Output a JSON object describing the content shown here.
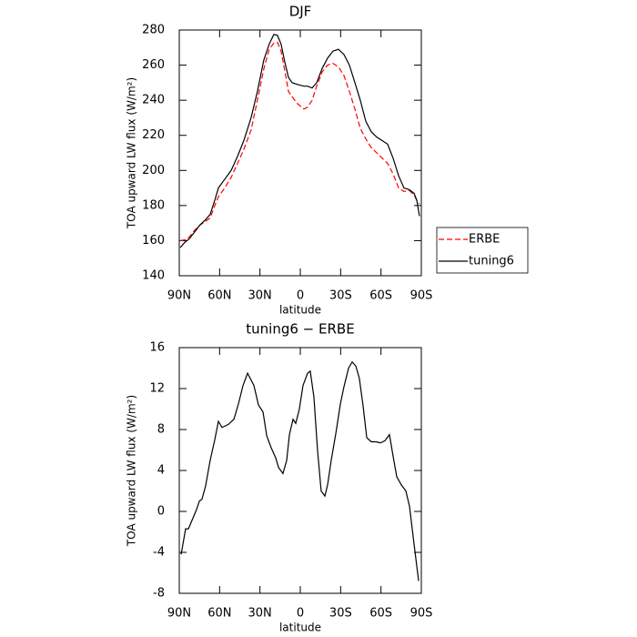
{
  "chart_data": [
    {
      "type": "line",
      "title": "DJF",
      "x_label": "latitude",
      "y_label": "TOA upward LW flux (W/m²)",
      "x": [
        89.3,
        85.9,
        82.6,
        78.5,
        74.5,
        70.4,
        67.0,
        63.6,
        60.9,
        56.2,
        51.4,
        46.7,
        42.0,
        36.6,
        31.9,
        27.1,
        23.1,
        19.7,
        17.0,
        14.3,
        11.6,
        8.8,
        6.1,
        2.1,
        -2.7,
        -5.4,
        -8.8,
        -12.2,
        -16.2,
        -20.3,
        -24.3,
        -28.4,
        -32.5,
        -36.5,
        -40.6,
        -44.6,
        -48.7,
        -52.8,
        -56.8,
        -60.9,
        -64.9,
        -69.0,
        -73.1,
        -77.1,
        -81.2,
        -84.6,
        -86.6,
        -88.6
      ],
      "series": [
        {
          "name": "ERBE",
          "color": "#ff0000",
          "dashed": true,
          "values": [
            160,
            160.5,
            162,
            166,
            169,
            171,
            173,
            180,
            185,
            190,
            196,
            204,
            212,
            223,
            240,
            258,
            269,
            272.5,
            273,
            268,
            257,
            245,
            242,
            238,
            235,
            236,
            240,
            248,
            256,
            260,
            261,
            259,
            254,
            245,
            235,
            224,
            218,
            213,
            210,
            207,
            204,
            198,
            190,
            188,
            188.5,
            186,
            183,
            181
          ]
        },
        {
          "name": "tuning6",
          "color": "#000000",
          "dashed": false,
          "values": [
            156,
            159,
            161,
            165,
            169,
            172,
            175,
            183,
            190,
            195,
            200,
            208,
            217,
            230,
            245,
            263,
            272,
            277.5,
            277,
            272,
            262,
            253,
            250,
            249,
            248,
            248,
            247,
            250,
            258,
            264,
            268,
            269,
            266,
            260,
            250,
            240,
            228,
            222,
            219,
            217,
            215,
            207,
            197,
            190,
            189,
            187,
            183,
            174
          ]
        }
      ],
      "xlim": [
        90,
        -90
      ],
      "xticks": [
        {
          "value": 90,
          "label": "90N"
        },
        {
          "value": 60,
          "label": "60N"
        },
        {
          "value": 30,
          "label": "30N"
        },
        0,
        {
          "value": -30,
          "label": "30S"
        },
        {
          "value": -60,
          "label": "60S"
        },
        {
          "value": -90,
          "label": "90S"
        }
      ],
      "ylim": [
        140,
        280
      ],
      "yticks": [
        140,
        160,
        180,
        200,
        220,
        240,
        260,
        280
      ],
      "legend": "right"
    },
    {
      "type": "line",
      "title": "tuning6 − ERBE",
      "x_label": "latitude",
      "y_label": "TOA upward LW flux (W/m²)",
      "x": [
        88.6,
        85.3,
        83.2,
        77.1,
        75.1,
        73.1,
        70.4,
        67.0,
        63.6,
        60.9,
        58.2,
        53.5,
        49.4,
        46.0,
        42.6,
        39.2,
        34.5,
        31.1,
        27.7,
        25.0,
        21.6,
        18.2,
        16.2,
        12.9,
        10.1,
        8.1,
        5.4,
        3.4,
        0.7,
        -2.0,
        -5.4,
        -7.4,
        -10.1,
        -12.8,
        -15.5,
        -18.3,
        -20.3,
        -23.0,
        -26.4,
        -29.8,
        -32.5,
        -35.9,
        -38.6,
        -41.3,
        -43.9,
        -46.7,
        -49.4,
        -52.8,
        -56.2,
        -59.6,
        -62.9,
        -66.3,
        -69.0,
        -71.7,
        -75.1,
        -78.5,
        -81.2,
        -84.6,
        -88.0
      ],
      "series": [
        {
          "name": "tuning6 − ERBE",
          "color": "#000000",
          "dashed": false,
          "values": [
            -4.2,
            -1.7,
            -1.7,
            0.2,
            1,
            1.2,
            2.5,
            5,
            7,
            8.8,
            8.2,
            8.5,
            9,
            10.5,
            12.3,
            13.5,
            12.3,
            10.4,
            9.7,
            7.4,
            6.2,
            5.2,
            4.3,
            3.7,
            5,
            7.5,
            9,
            8.6,
            10,
            12.3,
            13.5,
            13.7,
            11.2,
            6,
            2,
            1.5,
            2.6,
            5,
            7.6,
            10.5,
            12.2,
            14,
            14.6,
            14.2,
            13,
            10.3,
            7.2,
            6.8,
            6.8,
            6.7,
            6.9,
            7.5,
            5.4,
            3.4,
            2.6,
            2,
            0.5,
            -3.2,
            -6.8
          ]
        }
      ],
      "xlim": [
        90,
        -90
      ],
      "xticks": [
        {
          "value": 90,
          "label": "90N"
        },
        {
          "value": 60,
          "label": "60N"
        },
        {
          "value": 30,
          "label": "30N"
        },
        0,
        {
          "value": -30,
          "label": "30S"
        },
        {
          "value": -60,
          "label": "60S"
        },
        {
          "value": -90,
          "label": "90S"
        }
      ],
      "ylim": [
        -8,
        16
      ],
      "yticks": [
        -8,
        -4,
        0,
        4,
        8,
        12,
        16
      ]
    }
  ]
}
